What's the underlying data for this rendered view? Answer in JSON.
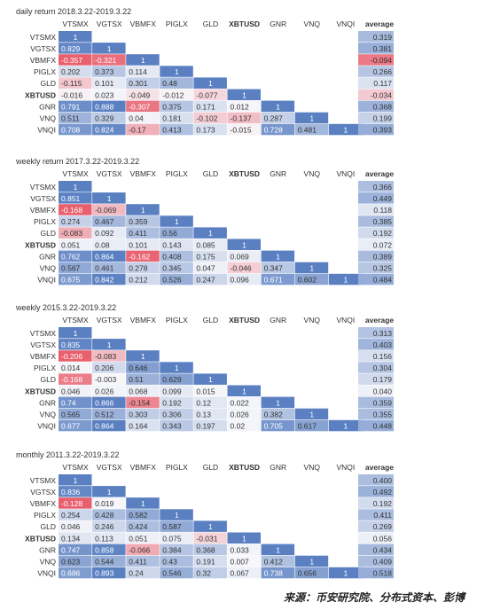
{
  "chart_data": [
    {
      "type": "heatmap",
      "title": "daily return 2018.3.22-2019.3.22",
      "columns": [
        "VTSMX",
        "VGTSX",
        "VBMFX",
        "PIGLX",
        "GLD",
        "XBTUSD",
        "GNR",
        "VNQ",
        "VNQI"
      ],
      "rows": [
        "VTSMX",
        "VGTSX",
        "VBMFX",
        "PIGLX",
        "GLD",
        "XBTUSD",
        "GNR",
        "VNQ",
        "VNQI"
      ],
      "average_label": "average",
      "values": [
        [
          "1"
        ],
        [
          "0.829",
          "1"
        ],
        [
          "-0.357",
          "-0.321",
          "1"
        ],
        [
          "0.202",
          "0.373",
          "0.114",
          "1"
        ],
        [
          "-0.115",
          "0.101",
          "0.301",
          "0.48",
          "1"
        ],
        [
          "-0.016",
          "0.023",
          "-0.049",
          "-0.012",
          "-0.077",
          "1"
        ],
        [
          "0.791",
          "0.888",
          "-0.307",
          "0.375",
          "0.171",
          "0.012",
          "1"
        ],
        [
          "0.511",
          "0.329",
          "0.04",
          "0.181",
          "-0.102",
          "-0.137",
          "0.287",
          "1"
        ],
        [
          "0.708",
          "0.824",
          "-0.17",
          "0.413",
          "0.173",
          "-0.015",
          "0.728",
          "0.481",
          "1"
        ]
      ],
      "averages": [
        "0.319",
        "0.381",
        "-0.094",
        "0.266",
        "0.117",
        "-0.034",
        "0.368",
        "0.199",
        "0.393"
      ]
    },
    {
      "type": "heatmap",
      "title": "weekly return 2017.3.22-2019.3.22",
      "columns": [
        "VTSMX",
        "VGTSX",
        "VBMFX",
        "PIGLX",
        "GLD",
        "XBTUSD",
        "GNR",
        "VNQ",
        "VNQI"
      ],
      "rows": [
        "VTSMX",
        "VGTSX",
        "VBMFX",
        "PIGLX",
        "GLD",
        "XBTUSD",
        "GNR",
        "VNQ",
        "VNQI"
      ],
      "average_label": "average",
      "values": [
        [
          "1"
        ],
        [
          "0.851",
          "1"
        ],
        [
          "-0.168",
          "-0.069",
          "1"
        ],
        [
          "0.274",
          "0.467",
          "0.359",
          "1"
        ],
        [
          "-0.083",
          "0.092",
          "0.411",
          "0.56",
          "1"
        ],
        [
          "0.051",
          "0.08",
          "0.101",
          "0.143",
          "0.085",
          "1"
        ],
        [
          "0.762",
          "0.864",
          "-0.162",
          "0.408",
          "0.175",
          "0.069",
          "1"
        ],
        [
          "0.567",
          "0.461",
          "0.278",
          "0.345",
          "0.047",
          "-0.046",
          "0.347",
          "1"
        ],
        [
          "0.675",
          "0.842",
          "0.212",
          "0.526",
          "0.247",
          "0.096",
          "0.671",
          "0.602",
          "1"
        ]
      ],
      "averages": [
        "0.366",
        "0.449",
        "0.118",
        "0.385",
        "0.192",
        "0.072",
        "0.389",
        "0.325",
        "0.484"
      ]
    },
    {
      "type": "heatmap",
      "title": "weekly 2015.3.22-2019.3.22",
      "columns": [
        "VTSMX",
        "VGTSX",
        "VBMFX",
        "PIGLX",
        "GLD",
        "XBTUSD",
        "GNR",
        "VNQ",
        "VNQI"
      ],
      "rows": [
        "VTSMX",
        "VGTSX",
        "VBMFX",
        "PIGLX",
        "GLD",
        "XBTUSD",
        "GNR",
        "VNQ",
        "VNQI"
      ],
      "average_label": "average",
      "values": [
        [
          "1"
        ],
        [
          "0.835",
          "1"
        ],
        [
          "-0.206",
          "-0.083",
          "1"
        ],
        [
          "0.014",
          "0.206",
          "0.646",
          "1"
        ],
        [
          "-0.168",
          "-0.003",
          "0.51",
          "0.629",
          "1"
        ],
        [
          "0.046",
          "0.026",
          "0.068",
          "0.099",
          "0.015",
          "1"
        ],
        [
          "0.74",
          "0.866",
          "-0.154",
          "0.192",
          "0.12",
          "0.022",
          "1"
        ],
        [
          "0.565",
          "0.512",
          "0.303",
          "0.306",
          "0.13",
          "0.026",
          "0.382",
          "1"
        ],
        [
          "0.677",
          "0.864",
          "0.164",
          "0.343",
          "0.197",
          "0.02",
          "0.705",
          "0.617",
          "1"
        ]
      ],
      "averages": [
        "0.313",
        "0.403",
        "0.156",
        "0.304",
        "0.179",
        "0.040",
        "0.359",
        "0.355",
        "0.448"
      ]
    },
    {
      "type": "heatmap",
      "title": "monthly 2011.3.22-2019.3.22",
      "columns": [
        "VTSMX",
        "VGTSX",
        "VBMFX",
        "PIGLX",
        "GLD",
        "XBTUSD",
        "GNR",
        "VNQ",
        "VNQI"
      ],
      "rows": [
        "VTSMX",
        "VGTSX",
        "VBMFX",
        "PIGLX",
        "GLD",
        "XBTUSD",
        "GNR",
        "VNQ",
        "VNQI"
      ],
      "average_label": "average",
      "values": [
        [
          "1"
        ],
        [
          "0.836",
          "1"
        ],
        [
          "-0.128",
          "0.019",
          "1"
        ],
        [
          "0.254",
          "0.428",
          "0.582",
          "1"
        ],
        [
          "0.046",
          "0.246",
          "0.424",
          "0.587",
          "1"
        ],
        [
          "0.134",
          "0.113",
          "0.051",
          "0.075",
          "-0.031",
          "1"
        ],
        [
          "0.747",
          "0.858",
          "-0.066",
          "0.384",
          "0.368",
          "0.033",
          "1"
        ],
        [
          "0.623",
          "0.544",
          "0.411",
          "0.43",
          "0.191",
          "0.007",
          "0.412",
          "1"
        ],
        [
          "0.686",
          "0.893",
          "0.24",
          "0.546",
          "0.32",
          "0.067",
          "0.738",
          "0.656",
          "1"
        ]
      ],
      "averages": [
        "0.400",
        "0.492",
        "0.192",
        "0.411",
        "0.269",
        "0.056",
        "0.434",
        "0.409",
        "0.518"
      ]
    }
  ],
  "source_label": "来源：币安研究院、分布式资本、彭博",
  "colors": {
    "positive": "#5a80c2",
    "negative": "#e8606e",
    "neutral": "#f8f8fb",
    "text": "#333333"
  }
}
